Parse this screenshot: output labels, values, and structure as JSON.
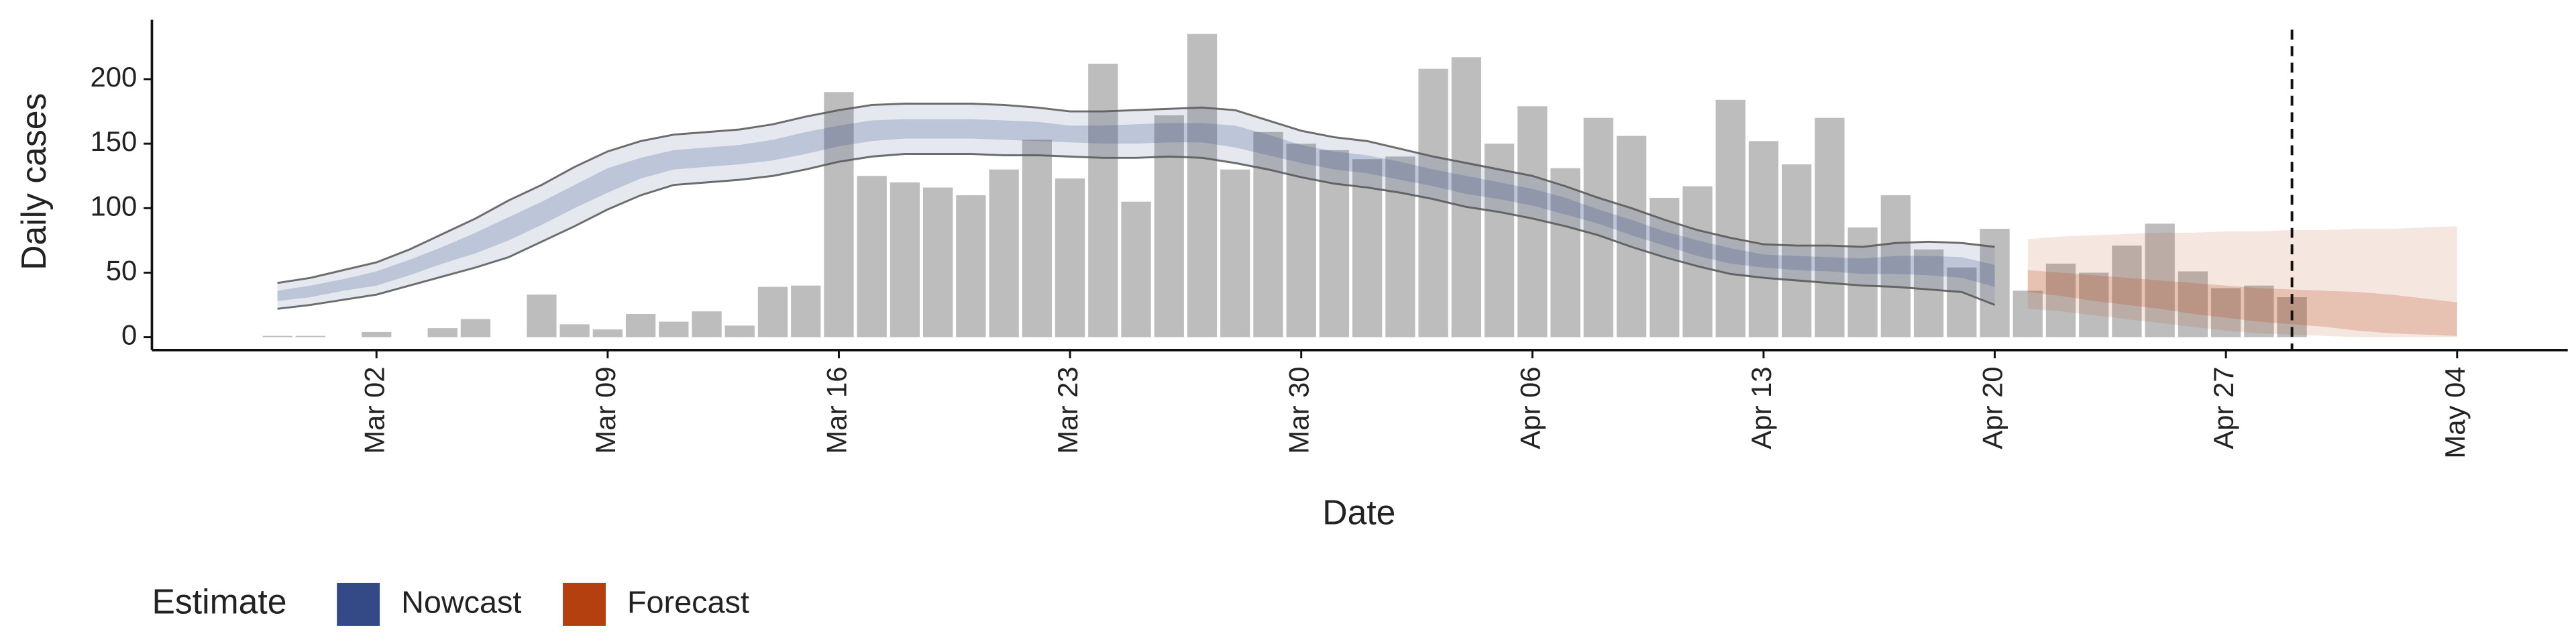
{
  "chart_data": {
    "type": "bar",
    "x_label": "Date",
    "y_label": "Daily cases",
    "legend_title": "Estimate",
    "x": [
      "Feb 28",
      "Feb 29",
      "Mar 01",
      "Mar 02",
      "Mar 03",
      "Mar 04",
      "Mar 05",
      "Mar 06",
      "Mar 07",
      "Mar 08",
      "Mar 09",
      "Mar 10",
      "Mar 11",
      "Mar 12",
      "Mar 13",
      "Mar 14",
      "Mar 15",
      "Mar 16",
      "Mar 17",
      "Mar 18",
      "Mar 19",
      "Mar 20",
      "Mar 21",
      "Mar 22",
      "Mar 23",
      "Mar 24",
      "Mar 25",
      "Mar 26",
      "Mar 27",
      "Mar 28",
      "Mar 29",
      "Mar 30",
      "Mar 31",
      "Apr 01",
      "Apr 02",
      "Apr 03",
      "Apr 04",
      "Apr 05",
      "Apr 06",
      "Apr 07",
      "Apr 08",
      "Apr 09",
      "Apr 10",
      "Apr 11",
      "Apr 12",
      "Apr 13",
      "Apr 14",
      "Apr 15",
      "Apr 16",
      "Apr 17",
      "Apr 18",
      "Apr 19",
      "Apr 20",
      "Apr 21",
      "Apr 22",
      "Apr 23",
      "Apr 24",
      "Apr 25",
      "Apr 26",
      "Apr 27",
      "Apr 28",
      "Apr 29",
      "Apr 30",
      "May 01",
      "May 02",
      "May 03",
      "May 04"
    ],
    "bars": {
      "color": "#bdbdbd",
      "values": [
        1,
        1,
        null,
        4,
        null,
        7,
        14,
        null,
        33,
        10,
        6,
        18,
        12,
        20,
        9,
        39,
        40,
        190,
        125,
        120,
        116,
        110,
        130,
        153,
        123,
        212,
        105,
        172,
        235,
        130,
        159,
        150,
        145,
        138,
        140,
        208,
        217,
        150,
        179,
        131,
        170,
        156,
        108,
        117,
        184,
        152,
        134,
        170,
        85,
        110,
        68,
        54,
        84,
        36,
        57,
        50,
        71,
        88,
        51,
        38,
        40,
        31,
        null,
        null,
        null,
        null,
        null
      ]
    },
    "series": [
      {
        "name": "Nowcast",
        "color": "#344a87",
        "outline": true,
        "lower": [
          22,
          25,
          29,
          33,
          40,
          47,
          54,
          62,
          74,
          86,
          99,
          110,
          118,
          120,
          122,
          125,
          130,
          136,
          140,
          142,
          142,
          142,
          141,
          141,
          140,
          139,
          139,
          140,
          139,
          135,
          130,
          124,
          119,
          116,
          112,
          107,
          101,
          97,
          92,
          86,
          79,
          70,
          62,
          55,
          49,
          46,
          44,
          42,
          40,
          39,
          37,
          35,
          25,
          null,
          null,
          null,
          null,
          null,
          null,
          null,
          null,
          null,
          null,
          null,
          null,
          null,
          null
        ],
        "upper": [
          42,
          46,
          52,
          58,
          68,
          80,
          92,
          106,
          118,
          132,
          144,
          152,
          157,
          159,
          161,
          165,
          171,
          176,
          180,
          181,
          181,
          181,
          180,
          178,
          175,
          175,
          176,
          177,
          178,
          176,
          168,
          160,
          155,
          152,
          146,
          140,
          135,
          130,
          125,
          117,
          108,
          100,
          91,
          83,
          77,
          72,
          71,
          71,
          70,
          73,
          74,
          73,
          70,
          null,
          null,
          null,
          null,
          null,
          null,
          null,
          null,
          null,
          null,
          null,
          null,
          null,
          null
        ],
        "lower_inner": [
          28,
          31,
          36,
          40,
          48,
          57,
          65,
          75,
          87,
          100,
          112,
          123,
          130,
          132,
          134,
          137,
          142,
          148,
          152,
          154,
          154,
          154,
          153,
          152,
          151,
          150,
          150,
          151,
          151,
          147,
          141,
          135,
          130,
          127,
          122,
          117,
          111,
          107,
          102,
          95,
          88,
          79,
          71,
          63,
          57,
          54,
          52,
          51,
          49,
          49,
          48,
          46,
          39,
          null,
          null,
          null,
          null,
          null,
          null,
          null,
          null,
          null,
          null,
          null,
          null,
          null,
          null
        ],
        "upper_inner": [
          36,
          40,
          45,
          51,
          60,
          70,
          81,
          93,
          105,
          118,
          131,
          139,
          145,
          147,
          149,
          153,
          159,
          164,
          168,
          169,
          169,
          169,
          168,
          167,
          164,
          164,
          165,
          166,
          166,
          164,
          157,
          149,
          144,
          141,
          136,
          130,
          125,
          120,
          115,
          108,
          99,
          91,
          82,
          75,
          69,
          64,
          63,
          62,
          61,
          63,
          63,
          62,
          56,
          null,
          null,
          null,
          null,
          null,
          null,
          null,
          null,
          null,
          null,
          null,
          null,
          null,
          null
        ]
      },
      {
        "name": "Forecast",
        "color": "#b5400f",
        "outline": false,
        "lower": [
          null,
          null,
          null,
          null,
          null,
          null,
          null,
          null,
          null,
          null,
          null,
          null,
          null,
          null,
          null,
          null,
          null,
          null,
          null,
          null,
          null,
          null,
          null,
          null,
          null,
          null,
          null,
          null,
          null,
          null,
          null,
          null,
          null,
          null,
          null,
          null,
          null,
          null,
          null,
          null,
          null,
          null,
          null,
          null,
          null,
          null,
          null,
          null,
          null,
          null,
          null,
          null,
          null,
          22,
          20,
          17,
          14,
          11,
          8,
          5,
          3,
          2,
          1,
          0,
          0,
          0,
          0
        ],
        "upper": [
          null,
          null,
          null,
          null,
          null,
          null,
          null,
          null,
          null,
          null,
          null,
          null,
          null,
          null,
          null,
          null,
          null,
          null,
          null,
          null,
          null,
          null,
          null,
          null,
          null,
          null,
          null,
          null,
          null,
          null,
          null,
          null,
          null,
          null,
          null,
          null,
          null,
          null,
          null,
          null,
          null,
          null,
          null,
          null,
          null,
          null,
          null,
          null,
          null,
          null,
          null,
          null,
          null,
          76,
          78,
          79,
          80,
          81,
          81,
          82,
          82,
          83,
          83,
          84,
          84,
          85,
          86
        ],
        "lower_inner": [
          null,
          null,
          null,
          null,
          null,
          null,
          null,
          null,
          null,
          null,
          null,
          null,
          null,
          null,
          null,
          null,
          null,
          null,
          null,
          null,
          null,
          null,
          null,
          null,
          null,
          null,
          null,
          null,
          null,
          null,
          null,
          null,
          null,
          null,
          null,
          null,
          null,
          null,
          null,
          null,
          null,
          null,
          null,
          null,
          null,
          null,
          null,
          null,
          null,
          null,
          null,
          null,
          null,
          35,
          32,
          28,
          25,
          22,
          18,
          15,
          12,
          10,
          8,
          5,
          3,
          2,
          1
        ],
        "upper_inner": [
          null,
          null,
          null,
          null,
          null,
          null,
          null,
          null,
          null,
          null,
          null,
          null,
          null,
          null,
          null,
          null,
          null,
          null,
          null,
          null,
          null,
          null,
          null,
          null,
          null,
          null,
          null,
          null,
          null,
          null,
          null,
          null,
          null,
          null,
          null,
          null,
          null,
          null,
          null,
          null,
          null,
          null,
          null,
          null,
          null,
          null,
          null,
          null,
          null,
          null,
          null,
          null,
          null,
          52,
          50,
          48,
          46,
          44,
          42,
          40,
          38,
          37,
          36,
          35,
          33,
          30,
          27
        ]
      }
    ],
    "vline": "Apr 29",
    "ylim": [
      -10,
      246
    ],
    "yticks": [
      0,
      50,
      100,
      150,
      200
    ],
    "xticks": [
      "Mar 02",
      "Mar 09",
      "Mar 16",
      "Mar 23",
      "Mar 30",
      "Apr 06",
      "Apr 13",
      "Apr 20",
      "Apr 27",
      "May 04"
    ]
  }
}
